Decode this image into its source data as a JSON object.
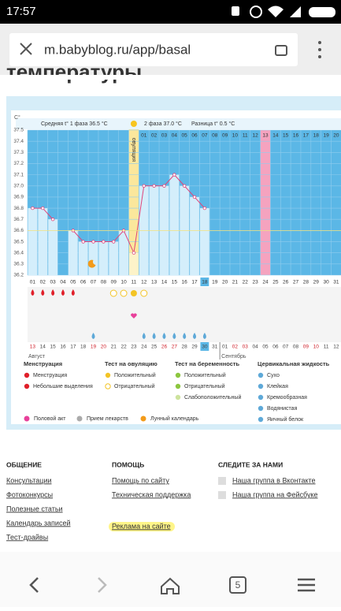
{
  "status_bar": {
    "time": "17:57"
  },
  "url_bar": {
    "url": "m.babyblog.ru/app/basal"
  },
  "page_heading": "температуры",
  "chart_data": {
    "type": "line",
    "y_axis_label": "C°",
    "annotations": {
      "phase1": "Средняя t° 1 фаза 36.5 °C",
      "phase2": "2 фаза 37.0 °C",
      "difference": "Разница t° 0.5 °C",
      "ovulation": "овуляция"
    },
    "categories": [
      "01",
      "02",
      "03",
      "04",
      "05",
      "06",
      "07",
      "08",
      "09",
      "10",
      "11",
      "12",
      "13",
      "14",
      "15",
      "16",
      "17",
      "18",
      "19",
      "20",
      "21",
      "22",
      "23",
      "24",
      "25",
      "26",
      "27",
      "28",
      "29",
      "30",
      "31"
    ],
    "values": [
      36.8,
      36.8,
      36.7,
      null,
      36.6,
      36.5,
      36.5,
      36.5,
      36.5,
      36.6,
      36.4,
      37.0,
      37.0,
      37.0,
      37.1,
      37.0,
      36.9,
      36.8,
      null,
      null,
      null,
      null,
      null,
      null,
      null,
      null,
      null,
      null,
      null,
      null,
      null
    ],
    "color": "#e0457b",
    "top_labels": [
      "01",
      "02",
      "03",
      "04",
      "05",
      "06",
      "07",
      "08",
      "09",
      "10",
      "11",
      "12",
      "13",
      "14",
      "15",
      "16",
      "17",
      "18",
      "19",
      "20"
    ],
    "dates": [
      "13",
      "14",
      "15",
      "16",
      "17",
      "18",
      "19",
      "20",
      "21",
      "22",
      "23",
      "24",
      "25",
      "26",
      "27",
      "28",
      "29",
      "30",
      "31",
      "01",
      "02",
      "03",
      "04",
      "05",
      "06",
      "07",
      "08",
      "09",
      "10",
      "11",
      "12"
    ],
    "months": [
      "Август",
      "Сентябрь"
    ],
    "ylim": [
      36.2,
      37.5
    ],
    "yticks": [
      36.2,
      36.3,
      36.4,
      36.5,
      36.6,
      36.7,
      36.8,
      36.9,
      {
        "value": 37,
        "label": "37.0"
      },
      37.1,
      37.2,
      37.3,
      37.4,
      37.5
    ],
    "grid": true
  },
  "legend": {
    "groups": [
      {
        "title": "Менструация",
        "items": [
          "Менструация",
          "Небольшие выделения"
        ]
      },
      {
        "title": "Тест на овуляцию",
        "items": [
          "Положительный",
          "Отрицательный"
        ]
      },
      {
        "title": "Тест на беременность",
        "items": [
          "Положительный",
          "Отрицательный",
          "Слабоположительный"
        ]
      },
      {
        "title": "Цервикальная жидкость",
        "items": [
          "Сухо",
          "Клейкая",
          "Кремообразная",
          "Водянистая",
          "Яичный белок"
        ]
      }
    ],
    "extra": [
      "Половой акт",
      "Прием лекарств",
      "Лунный календарь"
    ]
  },
  "footer": {
    "columns": [
      {
        "title": "ОБЩЕНИЕ",
        "links": [
          "Консультации",
          "Фотоконкурсы",
          "Полезные статьи",
          "Календарь записей",
          "Тест-драйвы"
        ]
      },
      {
        "title": "ПОМОЩЬ",
        "links": [
          "Помощь по сайту",
          "Техническая поддержка",
          "Реклама на сайте"
        ]
      },
      {
        "title": "СЛЕДИТЕ ЗА НАМИ",
        "links": [
          "Наша группа в Вконтакте",
          "Наша группа на Фейсбуке"
        ]
      }
    ]
  },
  "nav": {
    "tabs": 5
  }
}
